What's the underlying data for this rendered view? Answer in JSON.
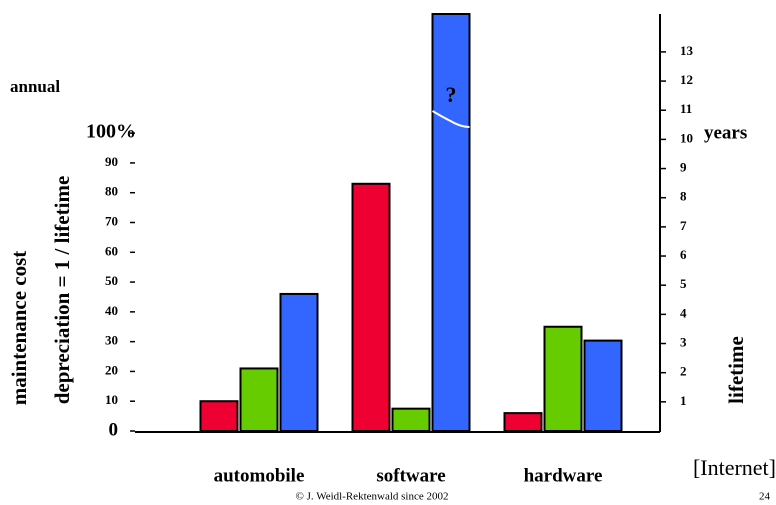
{
  "chart_data": {
    "type": "bar",
    "categories": [
      "automobile",
      "software",
      "hardware"
    ],
    "series": [
      {
        "name": "maintenance cost",
        "color": "#ee0033",
        "values": [
          10,
          83,
          6
        ]
      },
      {
        "name": "depreciation = 1 / lifetime",
        "color": "#66cc00",
        "values": [
          21,
          7.5,
          35
        ]
      },
      {
        "name": "lifetime",
        "color": "#3366ff",
        "axis": "y2",
        "values": [
          4.7,
          14.3,
          3.1
        ]
      }
    ],
    "ylim": [
      0,
      140
    ],
    "yticks": [
      0,
      10,
      20,
      30,
      40,
      50,
      60,
      70,
      80,
      90,
      {
        "value": 100,
        "label": "100%"
      }
    ],
    "y2lim": [
      0,
      14.3
    ],
    "y2ticks": [
      1,
      2,
      3,
      4,
      5,
      6,
      7,
      8,
      9,
      10,
      11,
      12,
      13
    ],
    "annotations": [
      "annual",
      "years",
      "?"
    ]
  },
  "source": "[Internet]",
  "footer": "© J. Weidl-Rektenwald since 2002",
  "page_number": "24"
}
